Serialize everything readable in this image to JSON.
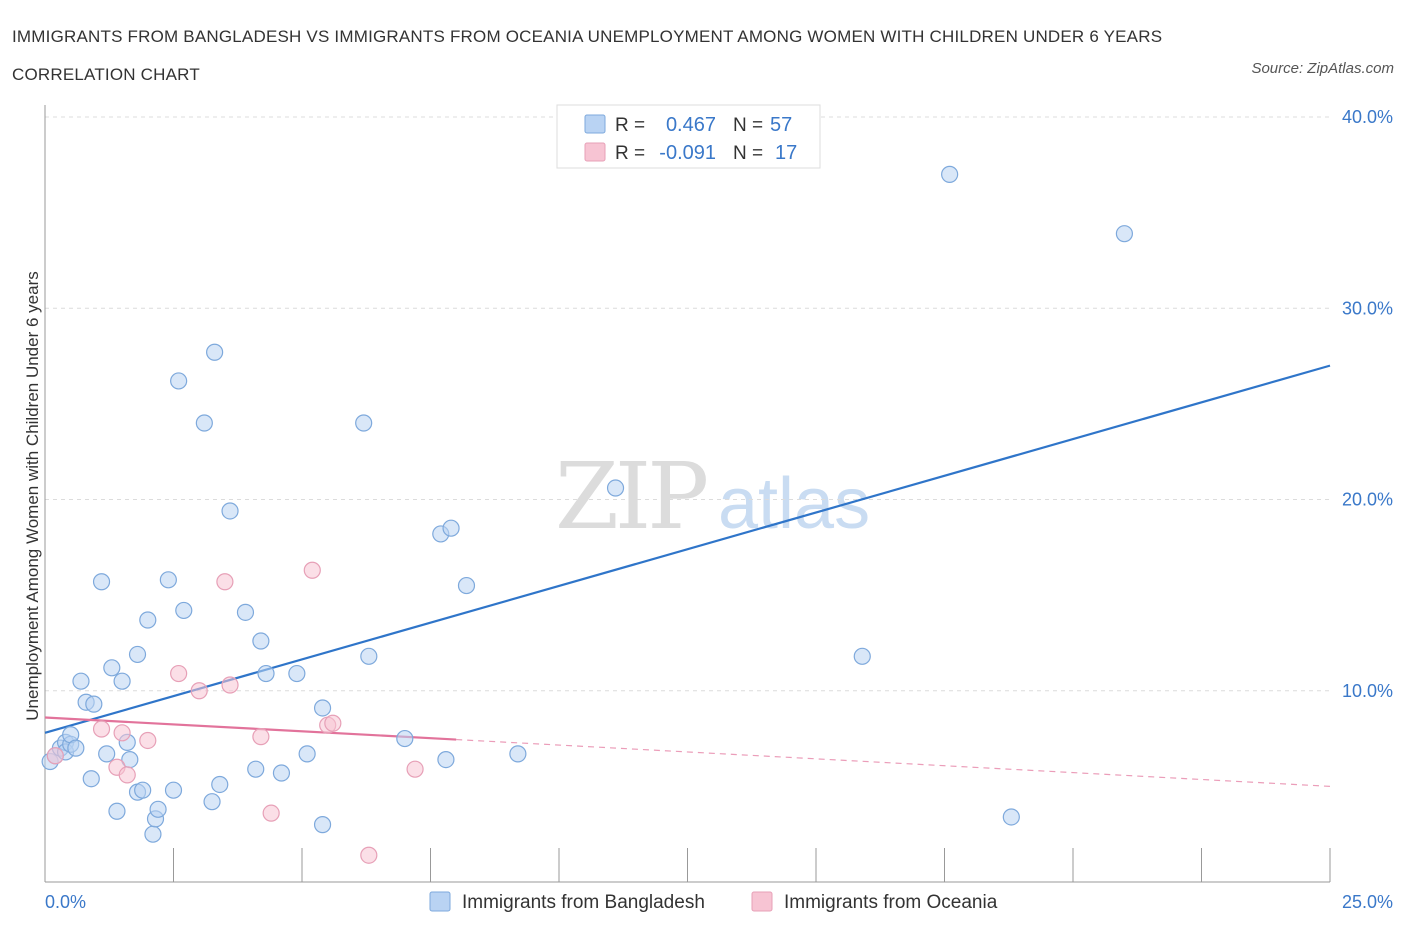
{
  "header": {
    "title": "IMMIGRANTS FROM BANGLADESH VS IMMIGRANTS FROM OCEANIA UNEMPLOYMENT AMONG WOMEN WITH CHILDREN UNDER 6 YEARS CORRELATION CHART",
    "source": "Source: ZipAtlas.com"
  },
  "watermark": {
    "zip": "ZIP",
    "atlas": "atlas"
  },
  "colors": {
    "blue_fill": "#b9d3f3",
    "blue_stroke": "#7ea9dc",
    "blue_line": "#2f75c9",
    "pink_fill": "#f7c4d3",
    "pink_stroke": "#e7a0b7",
    "pink_line": "#e2739b",
    "axis_label": "#3a78c9",
    "grid": "#dcdcdc"
  },
  "legend": {
    "rows": [
      {
        "r_label": "R =",
        "r_value": "0.467",
        "n_label": "N =",
        "n_value": "57",
        "series": "blue"
      },
      {
        "r_label": "R =",
        "r_value": "-0.091",
        "n_label": "N =",
        "n_value": "17",
        "series": "pink"
      }
    ]
  },
  "bottom_legend": [
    {
      "label": "Immigrants from Bangladesh",
      "series": "blue"
    },
    {
      "label": "Immigrants from Oceania",
      "series": "pink"
    }
  ],
  "chart_data": {
    "type": "scatter",
    "title": "IMMIGRANTS FROM BANGLADESH VS IMMIGRANTS FROM OCEANIA UNEMPLOYMENT AMONG WOMEN WITH CHILDREN UNDER 6 YEARS CORRELATION CHART",
    "xlabel": "",
    "ylabel": "Unemployment Among Women with Children Under 6 years",
    "xlim": [
      0,
      25
    ],
    "ylim": [
      0,
      40
    ],
    "x_tick_labels": [
      {
        "value": 0,
        "label": "0.0%"
      },
      {
        "value": 25,
        "label": "25.0%"
      }
    ],
    "y_tick_labels": [
      {
        "value": 10,
        "label": "10.0%"
      },
      {
        "value": 20,
        "label": "20.0%"
      },
      {
        "value": 30,
        "label": "30.0%"
      },
      {
        "value": 40,
        "label": "40.0%"
      }
    ],
    "x_minor_ticks": [
      2.5,
      5,
      7.5,
      10,
      12.5,
      15,
      17.5,
      20,
      22.5,
      25
    ],
    "grid": true,
    "legend_position": "top-center",
    "series": [
      {
        "name": "Immigrants from Bangladesh",
        "color": "blue",
        "r": 0.467,
        "n": 57,
        "trend": {
          "x0": 0,
          "y0": 7.8,
          "x1": 25,
          "y1": 27.0,
          "dashed_from": null
        },
        "points": [
          [
            0.1,
            6.3
          ],
          [
            0.2,
            6.6
          ],
          [
            0.3,
            7.0
          ],
          [
            0.4,
            7.3
          ],
          [
            0.4,
            6.8
          ],
          [
            0.5,
            7.2
          ],
          [
            0.5,
            7.7
          ],
          [
            0.6,
            7.0
          ],
          [
            0.7,
            10.5
          ],
          [
            0.8,
            9.4
          ],
          [
            0.9,
            5.4
          ],
          [
            0.95,
            9.3
          ],
          [
            1.1,
            15.7
          ],
          [
            1.2,
            6.7
          ],
          [
            1.3,
            11.2
          ],
          [
            1.4,
            3.7
          ],
          [
            1.5,
            10.5
          ],
          [
            1.6,
            7.3
          ],
          [
            1.65,
            6.4
          ],
          [
            1.8,
            11.9
          ],
          [
            1.8,
            4.7
          ],
          [
            1.9,
            4.8
          ],
          [
            2.0,
            13.7
          ],
          [
            2.1,
            2.5
          ],
          [
            2.15,
            3.3
          ],
          [
            2.2,
            3.8
          ],
          [
            2.4,
            15.8
          ],
          [
            2.5,
            4.8
          ],
          [
            2.6,
            26.2
          ],
          [
            2.7,
            14.2
          ],
          [
            3.1,
            24.0
          ],
          [
            3.25,
            4.2
          ],
          [
            3.3,
            27.7
          ],
          [
            3.4,
            5.1
          ],
          [
            3.6,
            19.4
          ],
          [
            3.9,
            14.1
          ],
          [
            4.1,
            5.9
          ],
          [
            4.2,
            12.6
          ],
          [
            4.3,
            10.9
          ],
          [
            4.6,
            5.7
          ],
          [
            4.9,
            10.9
          ],
          [
            5.1,
            6.7
          ],
          [
            5.4,
            3.0
          ],
          [
            5.4,
            9.1
          ],
          [
            6.2,
            24.0
          ],
          [
            6.3,
            11.8
          ],
          [
            7.0,
            7.5
          ],
          [
            7.7,
            18.2
          ],
          [
            7.8,
            6.4
          ],
          [
            7.9,
            18.5
          ],
          [
            8.2,
            15.5
          ],
          [
            9.2,
            6.7
          ],
          [
            11.1,
            20.6
          ],
          [
            15.9,
            11.8
          ],
          [
            17.6,
            37.0
          ],
          [
            18.8,
            3.4
          ],
          [
            21.0,
            33.9
          ]
        ]
      },
      {
        "name": "Immigrants from Oceania",
        "color": "pink",
        "r": -0.091,
        "n": 17,
        "trend": {
          "x0": 0,
          "y0": 8.6,
          "x1": 25,
          "y1": 5.0,
          "dashed_from": 8.0
        },
        "points": [
          [
            0.2,
            6.6
          ],
          [
            1.1,
            8.0
          ],
          [
            1.4,
            6.0
          ],
          [
            1.5,
            7.8
          ],
          [
            1.6,
            5.6
          ],
          [
            2.0,
            7.4
          ],
          [
            2.6,
            10.9
          ],
          [
            3.0,
            10.0
          ],
          [
            3.5,
            15.7
          ],
          [
            3.6,
            10.3
          ],
          [
            4.2,
            7.6
          ],
          [
            4.4,
            3.6
          ],
          [
            5.2,
            16.3
          ],
          [
            5.5,
            8.2
          ],
          [
            5.6,
            8.3
          ],
          [
            6.3,
            1.4
          ],
          [
            7.2,
            5.9
          ]
        ]
      }
    ]
  }
}
